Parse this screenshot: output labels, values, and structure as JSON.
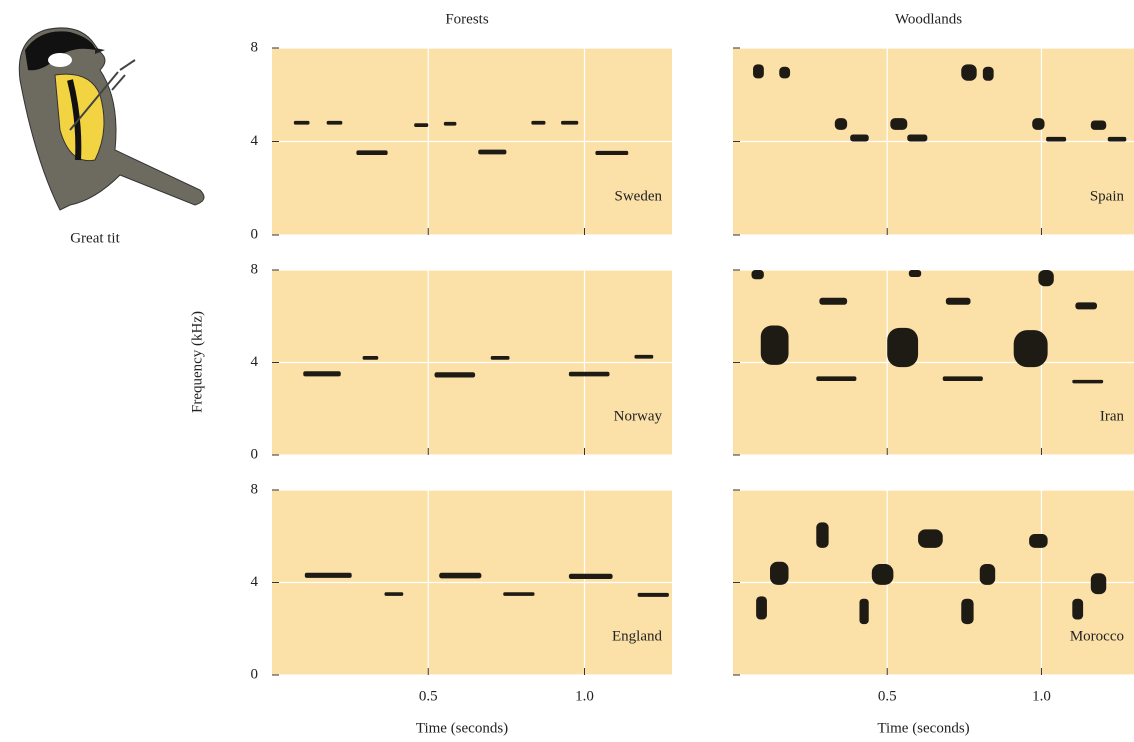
{
  "figure": {
    "caption": "Great tit",
    "y_label": "Frequency (kHz)"
  },
  "chart_data": [
    {
      "type": "spectrogram",
      "title": "Forests",
      "label": "Sweden",
      "xlim": [
        0,
        1.28
      ],
      "xticks": [
        0.5,
        1
      ],
      "ylim": [
        0,
        8
      ],
      "yticks": [
        0,
        4,
        8
      ],
      "grid": true,
      "color": "#1e1a14",
      "background": "#fbe0a8",
      "notes": [
        [
          0.07,
          0.12,
          4.72,
          4.88
        ],
        [
          0.175,
          0.225,
          4.72,
          4.88
        ],
        [
          0.27,
          0.37,
          3.42,
          3.62
        ],
        [
          0.455,
          0.5,
          4.62,
          4.78
        ],
        [
          0.55,
          0.59,
          4.68,
          4.84
        ],
        [
          0.66,
          0.75,
          3.45,
          3.65
        ],
        [
          0.83,
          0.875,
          4.72,
          4.88
        ],
        [
          0.925,
          0.98,
          4.72,
          4.88
        ],
        [
          1.035,
          1.14,
          3.42,
          3.6
        ]
      ]
    },
    {
      "type": "spectrogram",
      "title": "Woodlands",
      "label": "Spain",
      "xlim": [
        0,
        1.3
      ],
      "xticks": [
        0.5,
        1
      ],
      "ylim": [
        0,
        8
      ],
      "yticks": [
        0,
        4,
        8
      ],
      "grid": true,
      "color": "#1e1a14",
      "background": "#fbe0a8",
      "notes": [
        [
          0.065,
          0.1,
          6.7,
          7.3
        ],
        [
          0.15,
          0.185,
          6.7,
          7.2
        ],
        [
          0.33,
          0.37,
          4.5,
          5.0
        ],
        [
          0.38,
          0.44,
          4.0,
          4.3
        ],
        [
          0.51,
          0.565,
          4.5,
          5.0
        ],
        [
          0.565,
          0.63,
          4.0,
          4.3
        ],
        [
          0.74,
          0.79,
          6.6,
          7.3
        ],
        [
          0.81,
          0.845,
          6.6,
          7.2
        ],
        [
          0.97,
          1.01,
          4.5,
          5.0
        ],
        [
          1.015,
          1.08,
          4.0,
          4.2
        ],
        [
          1.16,
          1.21,
          4.5,
          4.9
        ],
        [
          1.215,
          1.275,
          4.0,
          4.2
        ]
      ]
    },
    {
      "type": "spectrogram",
      "label": "Norway",
      "xlim": [
        0,
        1.28
      ],
      "xticks": [
        0.5,
        1
      ],
      "ylim": [
        0,
        8
      ],
      "yticks": [
        0,
        4,
        8
      ],
      "grid": true,
      "color": "#1e1a14",
      "background": "#fbe0a8",
      "notes": [
        [
          0.1,
          0.22,
          3.4,
          3.62
        ],
        [
          0.29,
          0.34,
          4.12,
          4.28
        ],
        [
          0.52,
          0.65,
          3.35,
          3.58
        ],
        [
          0.7,
          0.76,
          4.12,
          4.28
        ],
        [
          0.95,
          1.08,
          3.4,
          3.6
        ],
        [
          1.16,
          1.22,
          4.17,
          4.33
        ]
      ]
    },
    {
      "type": "spectrogram",
      "label": "Iran",
      "xlim": [
        0,
        1.3
      ],
      "xticks": [
        0.5,
        1
      ],
      "ylim": [
        0,
        8
      ],
      "yticks": [
        0,
        4,
        8
      ],
      "grid": true,
      "color": "#1e1a14",
      "background": "#fbe0a8",
      "notes": [
        [
          0.06,
          0.1,
          7.6,
          8.0
        ],
        [
          0.09,
          0.18,
          3.9,
          5.6
        ],
        [
          0.28,
          0.37,
          6.5,
          6.8
        ],
        [
          0.27,
          0.4,
          3.2,
          3.4
        ],
        [
          0.57,
          0.61,
          7.7,
          8.0
        ],
        [
          0.5,
          0.6,
          3.8,
          5.5
        ],
        [
          0.69,
          0.77,
          6.5,
          6.8
        ],
        [
          0.68,
          0.81,
          3.2,
          3.4
        ],
        [
          0.99,
          1.04,
          7.3,
          8.0
        ],
        [
          0.91,
          1.02,
          3.8,
          5.4
        ],
        [
          1.11,
          1.18,
          6.3,
          6.6
        ],
        [
          1.1,
          1.2,
          3.1,
          3.25
        ]
      ]
    },
    {
      "type": "spectrogram",
      "label": "England",
      "xlabel": "Time (seconds)",
      "xlim": [
        0,
        1.28
      ],
      "xticks": [
        0.5,
        {
          "value": 1,
          "label": "1.0"
        }
      ],
      "ylim": [
        0,
        8
      ],
      "yticks": [
        0,
        4,
        8
      ],
      "grid": true,
      "color": "#1e1a14",
      "background": "#fbe0a8",
      "notes": [
        [
          0.105,
          0.255,
          4.2,
          4.42
        ],
        [
          0.36,
          0.42,
          3.42,
          3.58
        ],
        [
          0.535,
          0.67,
          4.18,
          4.42
        ],
        [
          0.74,
          0.84,
          3.42,
          3.58
        ],
        [
          0.95,
          1.09,
          4.15,
          4.38
        ],
        [
          1.17,
          1.27,
          3.38,
          3.55
        ]
      ]
    },
    {
      "type": "spectrogram",
      "label": "Morocco",
      "xlabel": "Time (seconds)",
      "xlim": [
        0,
        1.3
      ],
      "xticks": [
        0.5,
        {
          "value": 1,
          "label": "1.0"
        }
      ],
      "ylim": [
        0,
        8
      ],
      "yticks": [
        0,
        4,
        8
      ],
      "grid": true,
      "color": "#1e1a14",
      "background": "#fbe0a8",
      "notes": [
        [
          0.075,
          0.11,
          2.4,
          3.4
        ],
        [
          0.12,
          0.18,
          3.9,
          4.9
        ],
        [
          0.27,
          0.31,
          5.5,
          6.6
        ],
        [
          0.41,
          0.44,
          2.2,
          3.3
        ],
        [
          0.45,
          0.52,
          3.9,
          4.8
        ],
        [
          0.6,
          0.68,
          5.5,
          6.3
        ],
        [
          0.74,
          0.78,
          2.2,
          3.3
        ],
        [
          0.8,
          0.85,
          3.9,
          4.8
        ],
        [
          0.96,
          1.02,
          5.5,
          6.1
        ],
        [
          1.1,
          1.135,
          2.4,
          3.3
        ],
        [
          1.16,
          1.21,
          3.5,
          4.4
        ]
      ]
    }
  ]
}
